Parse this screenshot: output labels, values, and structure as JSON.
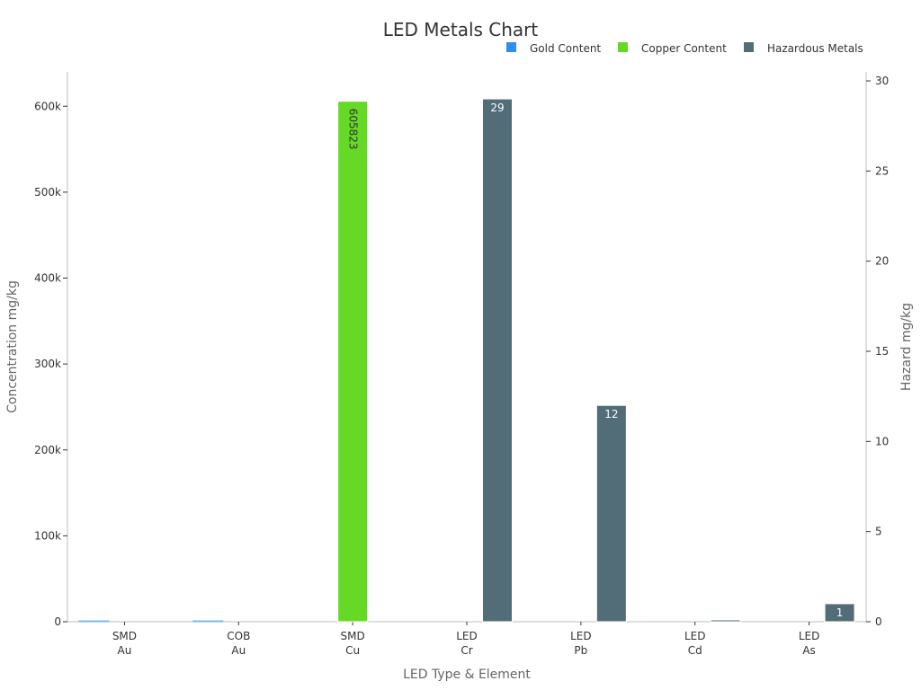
{
  "chart_data": {
    "type": "bar",
    "title": "LED Metals Chart",
    "xlabel": "LED Type & Element",
    "ylabel": "Concentration mg/kg",
    "y2label": "Hazard mg/kg",
    "legend_position": "top-right",
    "grid": false,
    "categories": [
      {
        "line1": "SMD",
        "line2": "Au"
      },
      {
        "line1": "COB",
        "line2": "Au"
      },
      {
        "line1": "SMD",
        "line2": "Cu"
      },
      {
        "line1": "LED",
        "line2": "Cr"
      },
      {
        "line1": "LED",
        "line2": "Pb"
      },
      {
        "line1": "LED",
        "line2": "Cd"
      },
      {
        "line1": "LED",
        "line2": "As"
      }
    ],
    "ylim": [
      0,
      640000
    ],
    "y2lim": [
      0,
      30.5
    ],
    "yticks": [
      {
        "value": 0,
        "label": "0"
      },
      {
        "value": 100000,
        "label": "100k"
      },
      {
        "value": 200000,
        "label": "200k"
      },
      {
        "value": 300000,
        "label": "300k"
      },
      {
        "value": 400000,
        "label": "400k"
      },
      {
        "value": 500000,
        "label": "500k"
      },
      {
        "value": 600000,
        "label": "600k"
      }
    ],
    "y2ticks": [
      {
        "value": 0,
        "label": "0"
      },
      {
        "value": 5,
        "label": "5"
      },
      {
        "value": 10,
        "label": "10"
      },
      {
        "value": 15,
        "label": "15"
      },
      {
        "value": 20,
        "label": "20"
      },
      {
        "value": 25,
        "label": "25"
      },
      {
        "value": 30,
        "label": "30"
      }
    ],
    "series": [
      {
        "name": "Gold Content",
        "color": "#2e8ff0",
        "axis": "left",
        "values": [
          350,
          1000,
          null,
          null,
          null,
          null,
          null
        ],
        "data_labels": [
          null,
          null,
          null,
          null,
          null,
          null,
          null
        ]
      },
      {
        "name": "Copper Content",
        "color": "#66d926",
        "axis": "left",
        "values": [
          null,
          null,
          605823,
          null,
          null,
          null,
          null
        ],
        "data_labels": [
          null,
          null,
          "605823",
          null,
          null,
          null,
          null
        ]
      },
      {
        "name": "Hazardous Metals",
        "color": "#526d78",
        "axis": "right",
        "values": [
          null,
          null,
          null,
          29,
          12,
          0.1,
          1
        ],
        "data_labels": [
          null,
          null,
          null,
          "29",
          "12",
          null,
          "1"
        ]
      }
    ]
  }
}
